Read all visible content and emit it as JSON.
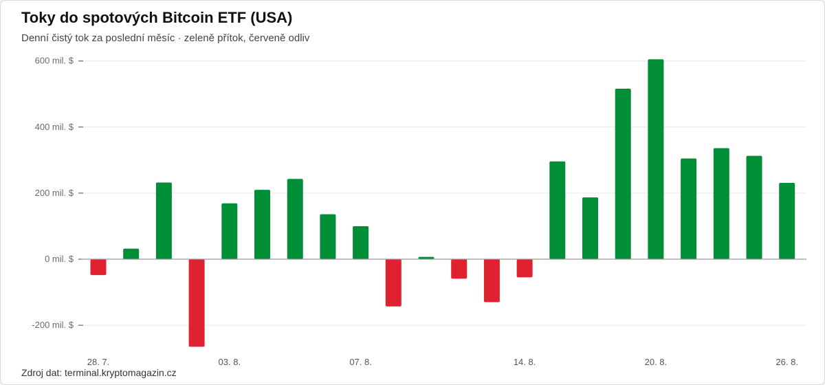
{
  "header": {
    "title": "Toky do spotových Bitcoin ETF (USA)",
    "subtitle": "Denní čistý tok za poslední měsíc · zeleně přítok, červeně odliv"
  },
  "footer": {
    "source": "Zdroj dat: terminal.kryptomagazin.cz"
  },
  "colors": {
    "inflow": "#008f36",
    "outflow": "#e0212f",
    "grid": "#e6e6e6",
    "axis": "#999999"
  },
  "chart_data": {
    "type": "bar",
    "title": "Toky do spotových Bitcoin ETF (USA)",
    "xlabel": "",
    "ylabel": "",
    "unit": "mil. $",
    "ylim": [
      -270,
      610
    ],
    "y_ticks": [
      {
        "value": 600,
        "label": "600 mil. $"
      },
      {
        "value": 400,
        "label": "400 mil. $"
      },
      {
        "value": 200,
        "label": "200 mil. $"
      },
      {
        "value": 0,
        "label": "0 mil. $"
      },
      {
        "value": -200,
        "label": "-200 mil. $"
      }
    ],
    "x_ticks": [
      {
        "index": 0,
        "label": "28. 7."
      },
      {
        "index": 4,
        "label": "03. 8."
      },
      {
        "index": 8,
        "label": "07. 8."
      },
      {
        "index": 13,
        "label": "14. 8."
      },
      {
        "index": 17,
        "label": "20. 8."
      },
      {
        "index": 21,
        "label": "26. 8."
      }
    ],
    "values": [
      -48,
      32,
      232,
      -265,
      169,
      210,
      243,
      136,
      100,
      -143,
      7,
      -59,
      -130,
      -55,
      296,
      187,
      516,
      605,
      305,
      336,
      313,
      231
    ],
    "grid": true,
    "legend": "none"
  }
}
